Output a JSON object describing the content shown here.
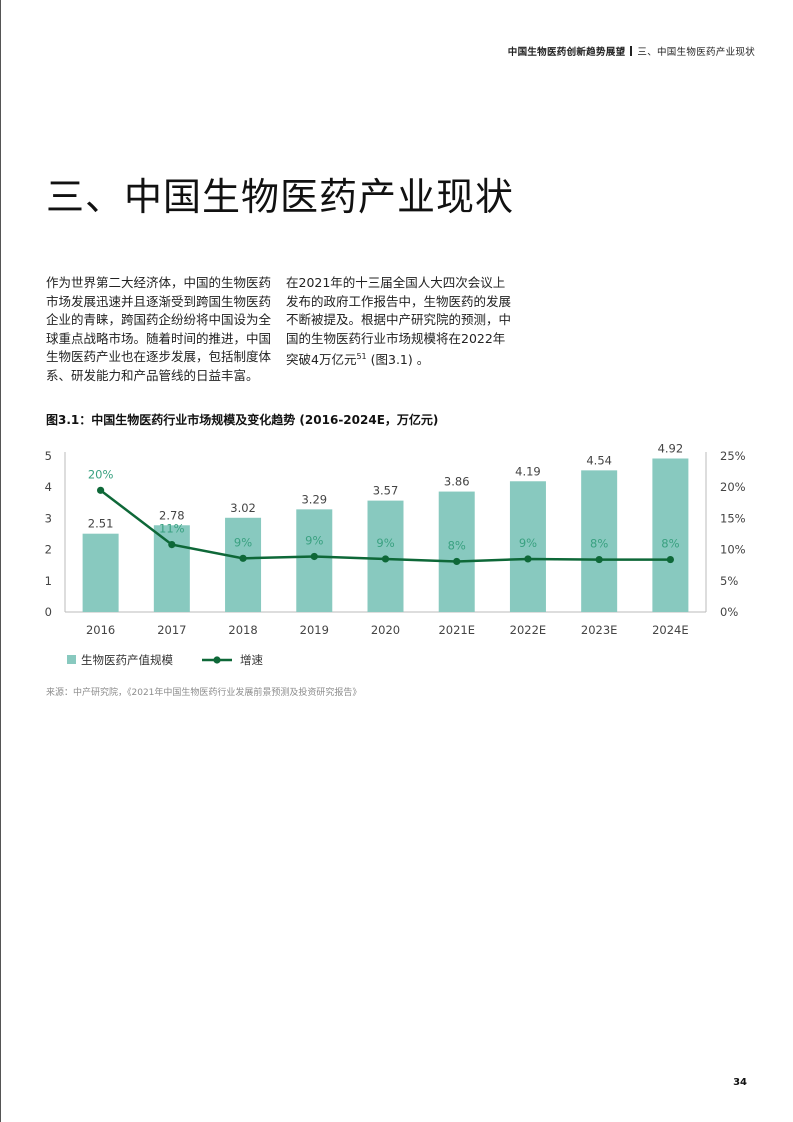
{
  "header": {
    "report_title": "中国生物医药创新趋势展望",
    "section": "三、中国生物医药产业现状"
  },
  "page_title": "三、中国生物医药产业现状",
  "body": {
    "left_paragraph": "作为世界第二大经济体，中国的生物医药市场发展迅速并且逐渐受到跨国生物医药企业的青睐，跨国药企纷纷将中国设为全球重点战略市场。随着时间的推进，中国生物医药产业也在逐步发展，包括制度体系、研发能力和产品管线的日益丰富。",
    "right_paragraph_main": "在2021年的十三届全国人大四次会议上发布的政府工作报告中，生物医药的发展不断被提及。根据中产研究院的预测，中国的生物医药行业市场规模将在2022年突破4万亿元",
    "right_paragraph_sup": "51",
    "right_paragraph_end": " (图3.1) 。"
  },
  "figure": {
    "title": "图3.1：中国生物医药行业市场规模及变化趋势 (2016-2024E，万亿元)",
    "source": "来源：中产研究院，《2021年中国生物医药行业发展前景预测及投资研究报告》"
  },
  "chart_data": {
    "type": "bar+line",
    "categories": [
      "2016",
      "2017",
      "2018",
      "2019",
      "2020",
      "2021E",
      "2022E",
      "2023E",
      "2024E"
    ],
    "series": [
      {
        "name": "生物医药产值规模",
        "type": "bar",
        "axis": "left",
        "values": [
          2.51,
          2.78,
          3.02,
          3.29,
          3.57,
          3.86,
          4.19,
          4.54,
          4.92
        ],
        "labels": [
          "2.51",
          "2.78",
          "3.02",
          "3.29",
          "3.57",
          "3.86",
          "4.19",
          "4.54",
          "4.92"
        ],
        "color": "#88c9bf"
      },
      {
        "name": "增速",
        "type": "line",
        "axis": "right",
        "values": [
          19.5,
          10.8,
          8.6,
          8.9,
          8.5,
          8.1,
          8.5,
          8.4,
          8.4
        ],
        "labels": [
          "20%",
          "11%",
          "9%",
          "9%",
          "9%",
          "8%",
          "9%",
          "8%",
          "8%"
        ],
        "color": "#0e6838"
      }
    ],
    "y_left": {
      "min": 0,
      "max": 5,
      "ticks": [
        "0",
        "1",
        "2",
        "3",
        "4",
        "5"
      ]
    },
    "y_right": {
      "min": 0,
      "max": 25,
      "ticks": [
        "0%",
        "5%",
        "10%",
        "15%",
        "20%",
        "25%"
      ]
    },
    "growth_label_color": "#3aa181",
    "legend_position": "bottom-left"
  },
  "page_number": "34"
}
